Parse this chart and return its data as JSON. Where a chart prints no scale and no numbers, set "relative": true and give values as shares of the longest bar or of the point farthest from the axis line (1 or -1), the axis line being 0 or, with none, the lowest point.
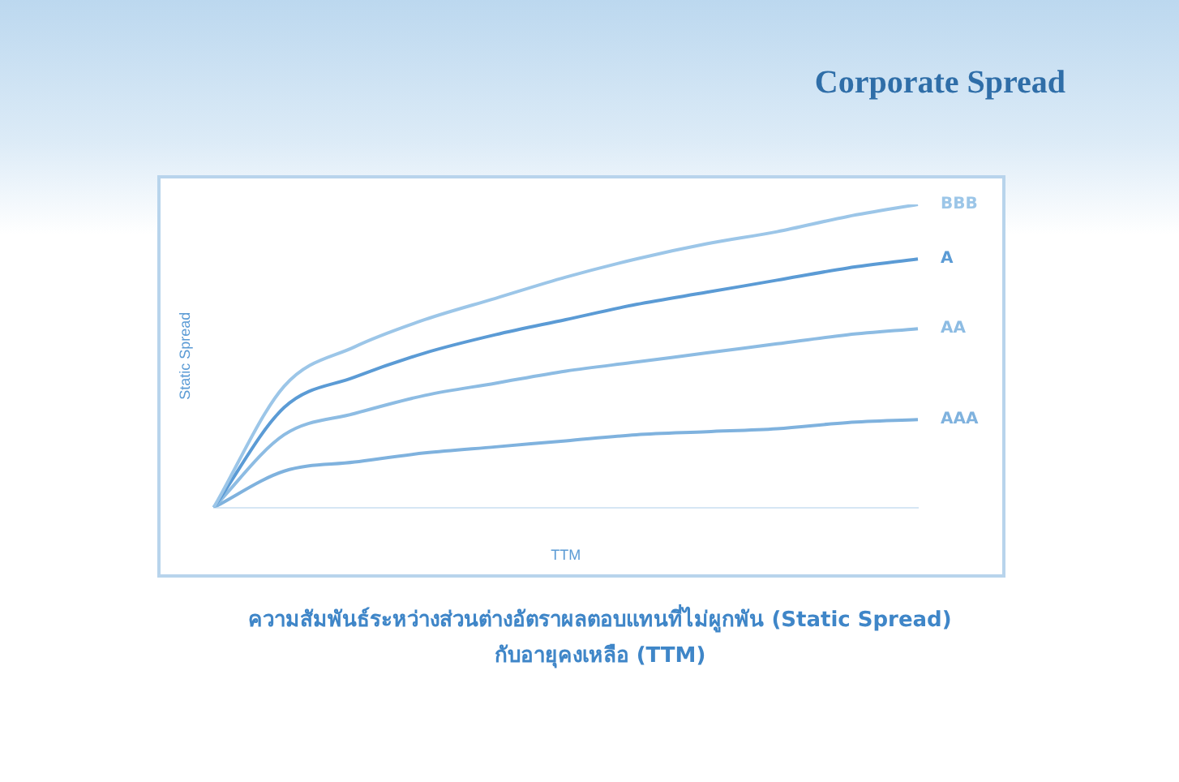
{
  "chart_data": {
    "type": "line",
    "title": "Corporate Spread",
    "xlabel": "TTM",
    "ylabel": "Static Spread",
    "relative": true,
    "legend": false,
    "grid": false,
    "marker": "none",
    "line_style": "solid",
    "categories": [
      null,
      null,
      null,
      null,
      null,
      null,
      null,
      null,
      null,
      null,
      null
    ],
    "series": [
      {
        "name": "BBB",
        "color": "#9cc6e8",
        "values": [
          0,
          0.4,
          0.53,
          0.62,
          0.69,
          0.76,
          0.82,
          0.87,
          0.91,
          0.96,
          1
        ]
      },
      {
        "name": "A",
        "color": "#5b9bd5",
        "values": [
          0,
          0.33,
          0.43,
          0.51,
          0.57,
          0.62,
          0.67,
          0.71,
          0.75,
          0.79,
          0.82
        ]
      },
      {
        "name": "AA",
        "color": "#8dbce3",
        "values": [
          0,
          0.24,
          0.31,
          0.37,
          0.41,
          0.45,
          0.48,
          0.51,
          0.54,
          0.57,
          0.59
        ]
      },
      {
        "name": "AAA",
        "color": "#7fb2de",
        "values": [
          0,
          0.12,
          0.15,
          0.18,
          0.2,
          0.22,
          0.24,
          0.25,
          0.26,
          0.28,
          0.29
        ]
      }
    ],
    "annotations": [
      "ความสัมพันธ์ระหว่างส่วนต่างอัตราผลตอบแทนที่ไม่ผูกพัน (Static Spread)",
      "กับอายุคงเหลือ (TTM)"
    ]
  }
}
